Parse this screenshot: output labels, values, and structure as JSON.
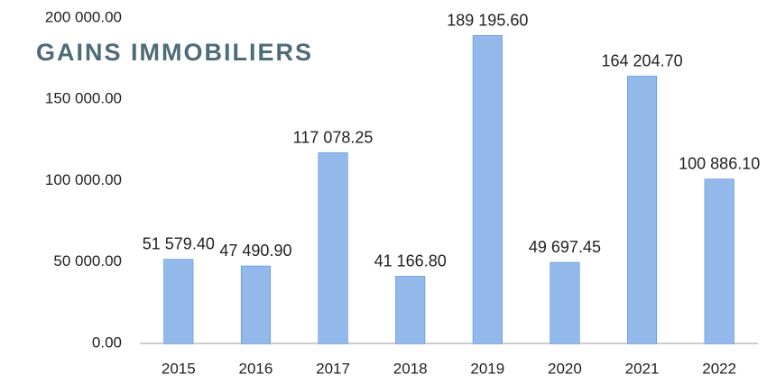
{
  "chart_data": {
    "type": "bar",
    "title": "GAINS IMMOBILIERS",
    "categories": [
      "2015",
      "2016",
      "2017",
      "2018",
      "2019",
      "2020",
      "2021",
      "2022"
    ],
    "values": [
      51579.4,
      47490.9,
      117078.25,
      41166.8,
      189195.6,
      49697.45,
      164204.7,
      100886.1
    ],
    "value_labels": [
      "51 579.40",
      "47 490.90",
      "117 078.25",
      "41 166.80",
      "189 195.60",
      "49 697.45",
      "164 204.70",
      "100 886.10"
    ],
    "color": "#3a80d8",
    "ylim": [
      0,
      200000
    ],
    "yticks": [
      {
        "value": 0,
        "label": "0.00"
      },
      {
        "value": 50000,
        "label": "50 000.00"
      },
      {
        "value": 100000,
        "label": "100 000.00"
      },
      {
        "value": 150000,
        "label": "150 000.00"
      },
      {
        "value": 200000,
        "label": "200 000.00"
      }
    ],
    "grid": false
  }
}
